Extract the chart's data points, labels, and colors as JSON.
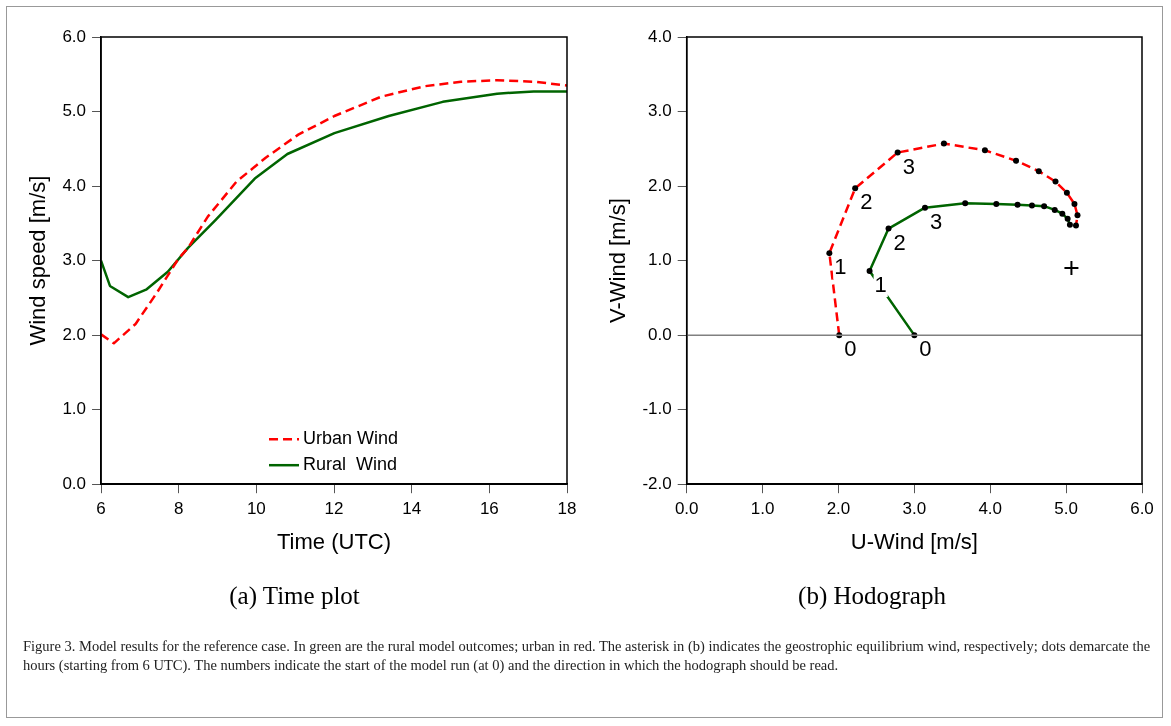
{
  "chart_data": [
    {
      "type": "line",
      "title": "(a) Time plot",
      "xlabel": "Time (UTC)",
      "ylabel": "Wind speed [m/s]",
      "xlim": [
        6,
        18
      ],
      "xticks": [
        6,
        8,
        10,
        12,
        14,
        16,
        18
      ],
      "ylim": [
        0,
        6
      ],
      "yticks": [
        {
          "value": 0,
          "label": "0.0"
        },
        {
          "value": 1,
          "label": "1.0"
        },
        {
          "value": 2,
          "label": "2.0"
        },
        {
          "value": 3,
          "label": "3.0"
        },
        {
          "value": 4,
          "label": "4.0"
        },
        {
          "value": 5,
          "label": "5.0"
        },
        {
          "value": 6,
          "label": "6.0"
        }
      ],
      "grid": false,
      "legend": "bottom",
      "marker": "none",
      "series": [
        {
          "name": "Urban Wind",
          "color": "#ff0000",
          "line_style": "dashed",
          "x": [
            6,
            6.33,
            6.89,
            7.44,
            8.0,
            8.24,
            8.75,
            9.49,
            10.24,
            11.08,
            12.01,
            13.22,
            14.34,
            15.27,
            16.2,
            17.14,
            18
          ],
          "values": [
            2.01,
            1.89,
            2.15,
            2.57,
            3.03,
            3.17,
            3.59,
            4.06,
            4.38,
            4.69,
            4.94,
            5.2,
            5.34,
            5.4,
            5.42,
            5.4,
            5.35
          ]
        },
        {
          "name": "Rural  Wind",
          "color": "#006400",
          "line_style": "solid",
          "x": [
            6,
            6.23,
            6.7,
            7.16,
            7.72,
            8.24,
            8.94,
            9.96,
            10.8,
            12.01,
            13.41,
            14.8,
            16.2,
            17.14,
            18
          ],
          "values": [
            3.0,
            2.66,
            2.51,
            2.61,
            2.85,
            3.17,
            3.54,
            4.1,
            4.43,
            4.71,
            4.94,
            5.13,
            5.24,
            5.27,
            5.27
          ]
        }
      ],
      "annotations": [
        "Figure 3. Model results for the reference case. In green are the rural model outcomes; urban in red. The asterisk in (b) indicates the geostrophic equilibrium wind, respectively; dots demarcate the hours (starting from 6 UTC). The numbers indicate the start of the model run (at 0) and the direction in which the hodograph should be read."
      ]
    },
    {
      "type": "line",
      "title": "(b) Hodograph",
      "xlabel": "U-Wind [m/s]",
      "ylabel": "V-Wind [m/s]",
      "xlim": [
        0,
        6
      ],
      "xticks": [
        {
          "value": 0,
          "label": "0.0"
        },
        {
          "value": 1,
          "label": "1.0"
        },
        {
          "value": 2,
          "label": "2.0"
        },
        {
          "value": 3,
          "label": "3.0"
        },
        {
          "value": 4,
          "label": "4.0"
        },
        {
          "value": 5,
          "label": "5.0"
        },
        {
          "value": 6,
          "label": "6.0"
        }
      ],
      "ylim": [
        -2,
        4
      ],
      "yticks": [
        {
          "value": -2,
          "label": "-2.0"
        },
        {
          "value": -1,
          "label": "-1.0"
        },
        {
          "value": 0,
          "label": "0.0"
        },
        {
          "value": 1,
          "label": "1.0"
        },
        {
          "value": 2,
          "label": "2.0"
        },
        {
          "value": 3,
          "label": "3.0"
        },
        {
          "value": 4,
          "label": "4.0"
        }
      ],
      "grid": false,
      "marker": "circle",
      "series": [
        {
          "color": "#ff0000",
          "line_style": "dashed",
          "x": [
            2.01,
            1.88,
            2.22,
            2.78,
            3.39,
            3.93,
            4.34,
            4.64,
            4.86,
            5.01,
            5.11,
            5.15,
            5.13
          ],
          "values": [
            0,
            1.1,
            1.97,
            2.45,
            2.57,
            2.48,
            2.34,
            2.2,
            2.06,
            1.91,
            1.76,
            1.61,
            1.47
          ]
        },
        {
          "type": "scatter",
          "color": "#000000",
          "marker": "cross",
          "x": [
            5.07
          ],
          "values": [
            0.9
          ]
        },
        {
          "color": "#006400",
          "line_style": "solid",
          "x": [
            3.0,
            2.41,
            2.66,
            3.14,
            3.67,
            4.08,
            4.36,
            4.55,
            4.71,
            4.85,
            4.95,
            5.02,
            5.05
          ],
          "values": [
            0,
            0.86,
            1.43,
            1.71,
            1.77,
            1.76,
            1.75,
            1.74,
            1.73,
            1.68,
            1.63,
            1.56,
            1.48
          ]
        }
      ],
      "ref_lines": [
        {
          "axis": "y",
          "value": 0,
          "color": "#808080"
        }
      ],
      "annotations": [
        {
          "text": "0",
          "x": 2.01,
          "y": 0
        },
        {
          "text": "1",
          "x": 1.88,
          "y": 1.1
        },
        {
          "text": "2",
          "x": 2.22,
          "y": 1.97
        },
        {
          "text": "3",
          "x": 2.78,
          "y": 2.45
        },
        {
          "text": "0",
          "x": 3.0,
          "y": 0
        },
        {
          "text": "1",
          "x": 2.41,
          "y": 0.86
        },
        {
          "text": "2",
          "x": 2.66,
          "y": 1.43
        },
        {
          "text": "3",
          "x": 3.14,
          "y": 1.71
        }
      ]
    }
  ]
}
